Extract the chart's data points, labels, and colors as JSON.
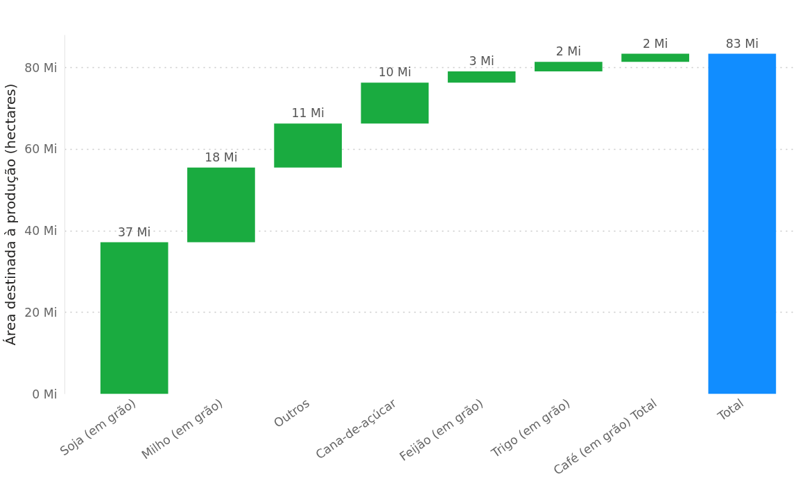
{
  "chart_data": {
    "type": "bar",
    "ylabel": "Área destinada à produção (hectares)",
    "categories": [
      "Soja (em grão)",
      "Milho (em grão)",
      "Outros",
      "Cana-de-açúcar",
      "Feijão (em grão)",
      "Trigo (em grão)",
      "Café (em grão) Total",
      "Total"
    ],
    "values": [
      37.2,
      18.3,
      10.8,
      10.0,
      2.8,
      2.3,
      2.0,
      83.4
    ],
    "base": [
      0,
      37.2,
      55.5,
      66.3,
      76.3,
      79.1,
      81.4,
      0
    ],
    "colors": [
      "#1aab40",
      "#1aab40",
      "#1aab40",
      "#1aab40",
      "#1aab40",
      "#1aab40",
      "#1aab40",
      "#118dff"
    ],
    "value_labels": [
      "37 Mi",
      "18 Mi",
      "11 Mi",
      "10 Mi",
      "3 Mi",
      "2 Mi",
      "2 Mi",
      "83 Mi"
    ],
    "ylim": [
      0,
      88
    ],
    "yticks": [
      {
        "value": 0,
        "label": "0 Mi"
      },
      {
        "value": 20,
        "label": "20 Mi"
      },
      {
        "value": 40,
        "label": "40 Mi"
      },
      {
        "value": 60,
        "label": "60 Mi"
      },
      {
        "value": 80,
        "label": "80 Mi"
      }
    ],
    "grid": "y"
  }
}
